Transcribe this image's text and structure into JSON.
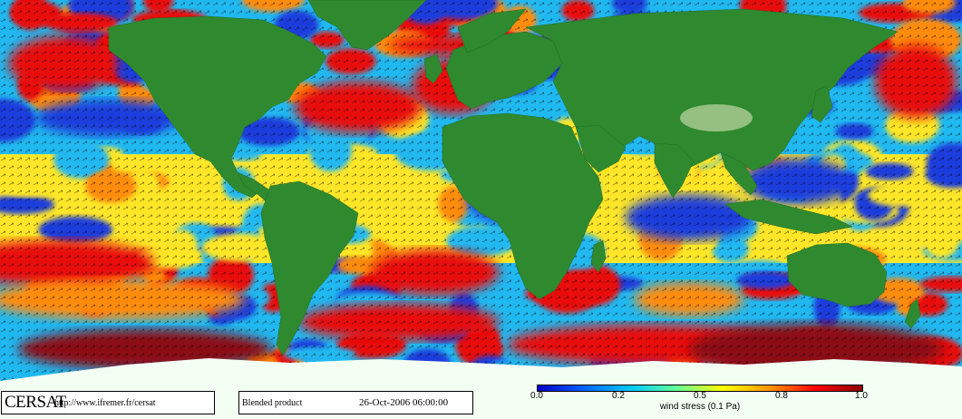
{
  "brand": {
    "logo_text": "CERSAT",
    "url": "http://www.ifremer.fr/cersat"
  },
  "product": {
    "name": "Blended product",
    "date": "26-Oct-2006 06:00:00"
  },
  "colorbar": {
    "ticks": [
      "0.0",
      "0.2",
      "0.5",
      "0.8",
      "1.0"
    ],
    "label": "wind stress (0.1 Pa)",
    "colors": [
      "#0000c8",
      "#0064ff",
      "#00c8ff",
      "#64ff96",
      "#ffff00",
      "#ff9600",
      "#ff0000",
      "#8b0000"
    ]
  },
  "map": {
    "ocean_colors": {
      "low": "#1e3cdc",
      "mid_low": "#20b8f0",
      "mid": "#ffe628",
      "mid_high": "#ff8c10",
      "high": "#e81010",
      "very_high": "#8c0a14"
    },
    "land_color": "#2f8a2f",
    "land_high_color": "#a8c890",
    "ice_color": "#f4fff4"
  }
}
